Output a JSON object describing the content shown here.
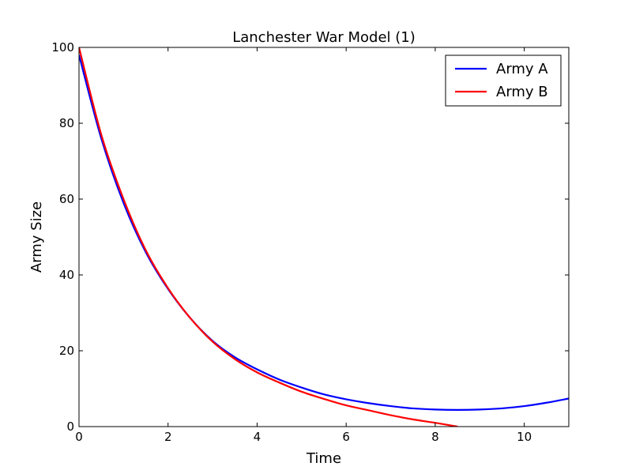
{
  "chart_data": {
    "type": "line",
    "title": "Lanchester War Model (1)",
    "xlabel": "Time",
    "ylabel": "Army Size",
    "xlim": [
      0,
      11
    ],
    "ylim": [
      0,
      100
    ],
    "xticks": [
      0,
      2,
      4,
      6,
      8,
      10
    ],
    "yticks": [
      0,
      20,
      40,
      60,
      80,
      100
    ],
    "grid": false,
    "legend_position": "top-right",
    "series": [
      {
        "name": "Army A",
        "color": "#0000ff",
        "x": [
          0,
          0.5,
          1,
          1.5,
          2,
          2.5,
          3,
          3.5,
          4,
          4.5,
          5,
          5.5,
          6,
          6.5,
          7,
          7.5,
          8,
          8.5,
          9,
          9.5,
          10,
          10.5,
          11
        ],
        "y": [
          98,
          76,
          59,
          46,
          36.3,
          28.6,
          22.6,
          18.3,
          15.1,
          12.4,
          10.3,
          8.5,
          7.2,
          6.2,
          5.4,
          4.8,
          4.5,
          4.4,
          4.5,
          4.8,
          5.4,
          6.3,
          7.4
        ]
      },
      {
        "name": "Army B",
        "color": "#ff0000",
        "x": [
          0,
          0.5,
          1,
          1.5,
          2,
          2.5,
          3,
          3.5,
          4,
          4.5,
          5,
          5.5,
          6,
          6.5,
          7,
          7.5,
          8,
          8.5
        ],
        "y": [
          100,
          77,
          60,
          46.5,
          36.5,
          28.6,
          22.4,
          17.8,
          14.3,
          11.6,
          9.2,
          7.3,
          5.6,
          4.3,
          3.0,
          1.9,
          1.0,
          0
        ]
      }
    ]
  }
}
